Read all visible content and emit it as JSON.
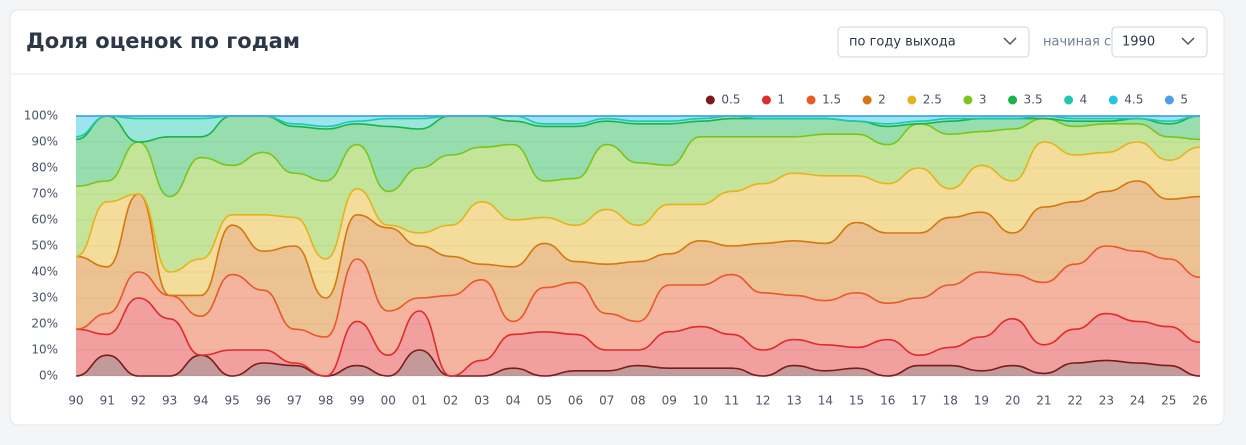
{
  "header": {
    "title": "Доля оценок по годам",
    "sort_select": "по году выхода",
    "from_label": "начиная с",
    "from_select": "1990"
  },
  "chart_data": {
    "type": "stacked-area",
    "categories": [
      "90",
      "91",
      "92",
      "93",
      "94",
      "95",
      "96",
      "97",
      "98",
      "99",
      "00",
      "01",
      "02",
      "03",
      "04",
      "05",
      "06",
      "07",
      "08",
      "09",
      "10",
      "11",
      "12",
      "13",
      "14",
      "15",
      "16",
      "17",
      "18",
      "19",
      "20",
      "21",
      "22",
      "23",
      "24",
      "25",
      "26"
    ],
    "ylim": [
      0,
      100
    ],
    "yticks": [
      {
        "value": 0,
        "label": "0%"
      },
      {
        "value": 10,
        "label": "10%"
      },
      {
        "value": 20,
        "label": "20%"
      },
      {
        "value": 30,
        "label": "30%"
      },
      {
        "value": 40,
        "label": "40%"
      },
      {
        "value": 50,
        "label": "50%"
      },
      {
        "value": 60,
        "label": "60%"
      },
      {
        "value": 70,
        "label": "70%"
      },
      {
        "value": 80,
        "label": "80%"
      },
      {
        "value": 90,
        "label": "90%"
      },
      {
        "value": 100,
        "label": "100%"
      }
    ],
    "grid": true,
    "legend": "top-right",
    "series": [
      {
        "name": "0.5",
        "color": "#7a1c1c",
        "values": [
          0,
          8,
          0,
          0,
          8,
          0,
          5,
          4,
          0,
          4,
          0,
          10,
          0,
          0,
          3,
          0,
          2,
          2,
          4,
          3,
          3,
          3,
          0,
          4,
          2,
          3,
          0,
          4,
          4,
          2,
          4,
          1,
          5,
          6,
          5,
          4,
          0
        ]
      },
      {
        "name": "1",
        "color": "#e02b2b",
        "values": [
          18,
          8,
          30,
          22,
          0,
          10,
          5,
          1,
          0,
          17,
          8,
          15,
          0,
          6,
          13,
          17,
          14,
          8,
          6,
          14,
          16,
          13,
          10,
          10,
          10,
          8,
          14,
          4,
          7,
          13,
          18,
          11,
          13,
          18,
          16,
          15,
          13
        ]
      },
      {
        "name": "1.5",
        "color": "#e8582a",
        "values": [
          0,
          8,
          10,
          9,
          15,
          29,
          23,
          13,
          15,
          24,
          17,
          5,
          31,
          31,
          5,
          17,
          20,
          14,
          11,
          18,
          16,
          23,
          22,
          17,
          17,
          21,
          14,
          22,
          24,
          25,
          17,
          24,
          25,
          26,
          27,
          26,
          25
        ]
      },
      {
        "name": "2",
        "color": "#d4770f",
        "values": [
          28,
          18,
          30,
          0,
          8,
          19,
          15,
          32,
          15,
          17,
          32,
          20,
          15,
          6,
          21,
          17,
          8,
          19,
          23,
          12,
          17,
          11,
          19,
          21,
          22,
          27,
          27,
          25,
          26,
          23,
          16,
          29,
          24,
          21,
          27,
          23,
          31
        ]
      },
      {
        "name": "2.5",
        "color": "#e6b31e",
        "values": [
          0,
          25,
          0,
          9,
          14,
          4,
          14,
          11,
          15,
          10,
          1,
          5,
          12,
          24,
          18,
          10,
          14,
          21,
          14,
          19,
          14,
          21,
          23,
          26,
          26,
          18,
          19,
          25,
          11,
          18,
          20,
          25,
          18,
          15,
          15,
          15,
          19
        ]
      },
      {
        "name": "3",
        "color": "#7cc41c",
        "values": [
          27,
          8,
          20,
          29,
          39,
          19,
          24,
          17,
          30,
          17,
          13,
          25,
          27,
          21,
          29,
          14,
          18,
          25,
          24,
          15,
          26,
          21,
          18,
          14,
          16,
          16,
          15,
          17,
          21,
          13,
          20,
          9,
          11,
          11,
          7,
          9,
          3
        ]
      },
      {
        "name": "3.5",
        "color": "#18b34a",
        "values": [
          18,
          25,
          0,
          23,
          8,
          19,
          14,
          18,
          20,
          8,
          25,
          15,
          15,
          12,
          9,
          21,
          20,
          9,
          15,
          16,
          6,
          7,
          7,
          7,
          6,
          5,
          7,
          0,
          5,
          5,
          4,
          0,
          2,
          1,
          2,
          5,
          9
        ]
      },
      {
        "name": "4",
        "color": "#1cc9b0",
        "values": [
          1,
          0,
          9,
          7,
          7,
          0,
          0,
          1,
          1,
          1,
          3,
          4,
          0,
          0,
          2,
          1,
          1,
          1,
          1,
          1,
          1,
          1,
          0,
          0,
          0,
          0,
          1,
          1,
          1,
          0,
          0,
          1,
          1,
          1,
          0,
          1,
          0
        ]
      },
      {
        "name": "4.5",
        "color": "#22c6e0",
        "values": [
          8,
          0,
          1,
          1,
          1,
          0,
          0,
          3,
          4,
          2,
          1,
          1,
          0,
          0,
          0,
          3,
          3,
          1,
          2,
          2,
          1,
          0,
          1,
          1,
          1,
          2,
          3,
          2,
          1,
          1,
          1,
          0,
          1,
          1,
          1,
          2,
          0
        ]
      },
      {
        "name": "5",
        "color": "#4d9de8",
        "values": [
          0,
          0,
          0,
          0,
          0,
          0,
          0,
          0,
          0,
          0,
          0,
          0,
          0,
          0,
          0,
          0,
          0,
          0,
          0,
          0,
          0,
          0,
          0,
          0,
          0,
          0,
          0,
          0,
          0,
          0,
          0,
          0,
          0,
          0,
          0,
          0,
          0
        ]
      }
    ]
  }
}
